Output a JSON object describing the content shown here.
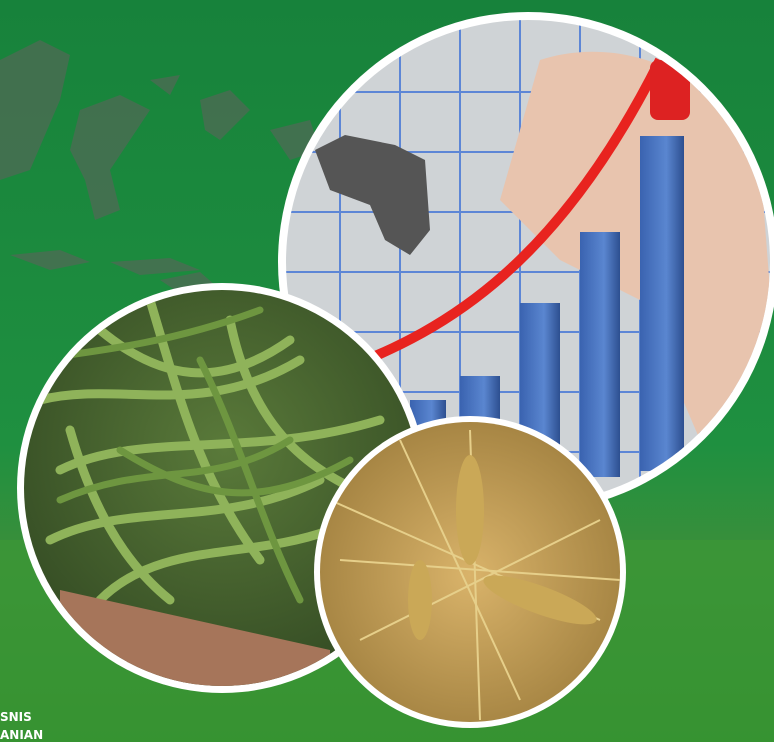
{
  "caption": {
    "line1": "SNIS",
    "line2": "ANIAN"
  }
}
